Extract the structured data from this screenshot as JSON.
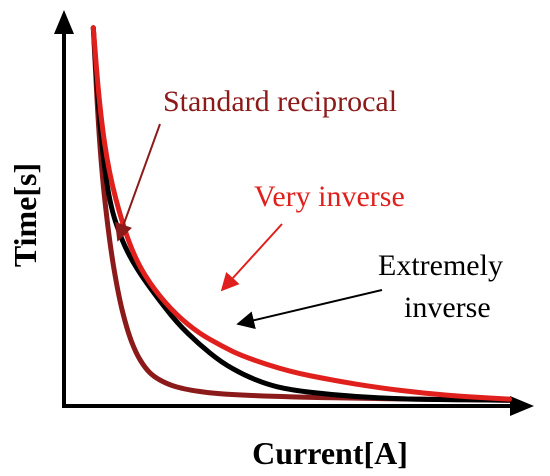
{
  "chart_data": {
    "type": "line",
    "title": "",
    "xlabel": "Current[A]",
    "ylabel": "Time[s]",
    "axis_ticks": false,
    "grid": false,
    "series": [
      {
        "name": "Standard reciprocal",
        "color": "#8b1a1a",
        "points": [
          [
            0.65,
            10.4
          ],
          [
            0.8,
            6.9
          ],
          [
            1.0,
            4.6
          ],
          [
            1.2,
            3.1
          ],
          [
            1.4,
            2.1
          ],
          [
            1.6,
            1.45
          ],
          [
            1.8,
            1.05
          ],
          [
            2.0,
            0.8
          ],
          [
            2.3,
            0.6
          ],
          [
            2.7,
            0.45
          ],
          [
            3.5,
            0.32
          ],
          [
            5.0,
            0.25
          ],
          [
            7.0,
            0.2
          ],
          [
            9.0,
            0.17
          ],
          [
            9.9,
            0.16
          ]
        ]
      },
      {
        "name": "Very inverse",
        "color": "#e0201c",
        "points": [
          [
            0.65,
            10.4
          ],
          [
            0.8,
            8.1
          ],
          [
            1.0,
            6.4
          ],
          [
            1.3,
            5.0
          ],
          [
            1.6,
            4.0
          ],
          [
            2.0,
            3.2
          ],
          [
            2.5,
            2.5
          ],
          [
            3.0,
            2.0
          ],
          [
            3.5,
            1.65
          ],
          [
            4.0,
            1.35
          ],
          [
            5.0,
            0.95
          ],
          [
            6.0,
            0.7
          ],
          [
            7.0,
            0.5
          ],
          [
            8.0,
            0.35
          ],
          [
            9.0,
            0.25
          ],
          [
            9.9,
            0.19
          ]
        ]
      },
      {
        "name": "Extremely inverse",
        "color": "#000000",
        "points": [
          [
            0.65,
            10.4
          ],
          [
            0.8,
            7.6
          ],
          [
            1.0,
            5.6
          ],
          [
            1.3,
            4.5
          ],
          [
            1.6,
            3.8
          ],
          [
            2.0,
            3.1
          ],
          [
            2.5,
            2.3
          ],
          [
            3.0,
            1.7
          ],
          [
            3.5,
            1.2
          ],
          [
            4.0,
            0.85
          ],
          [
            4.5,
            0.6
          ],
          [
            5.0,
            0.45
          ],
          [
            6.0,
            0.3
          ],
          [
            7.0,
            0.22
          ],
          [
            8.0,
            0.18
          ],
          [
            9.9,
            0.16
          ]
        ]
      }
    ],
    "annotations": [
      {
        "text": "Standard reciprocal",
        "color": "#8b1a1a",
        "points_to": "Standard reciprocal"
      },
      {
        "text": "Very inverse",
        "color": "#e0201c",
        "points_to": "Very inverse"
      },
      {
        "text": "Extremely",
        "color": "#000000",
        "points_to": "Extremely inverse"
      },
      {
        "text": "inverse",
        "color": "#000000",
        "points_to": "Extremely inverse"
      }
    ]
  }
}
